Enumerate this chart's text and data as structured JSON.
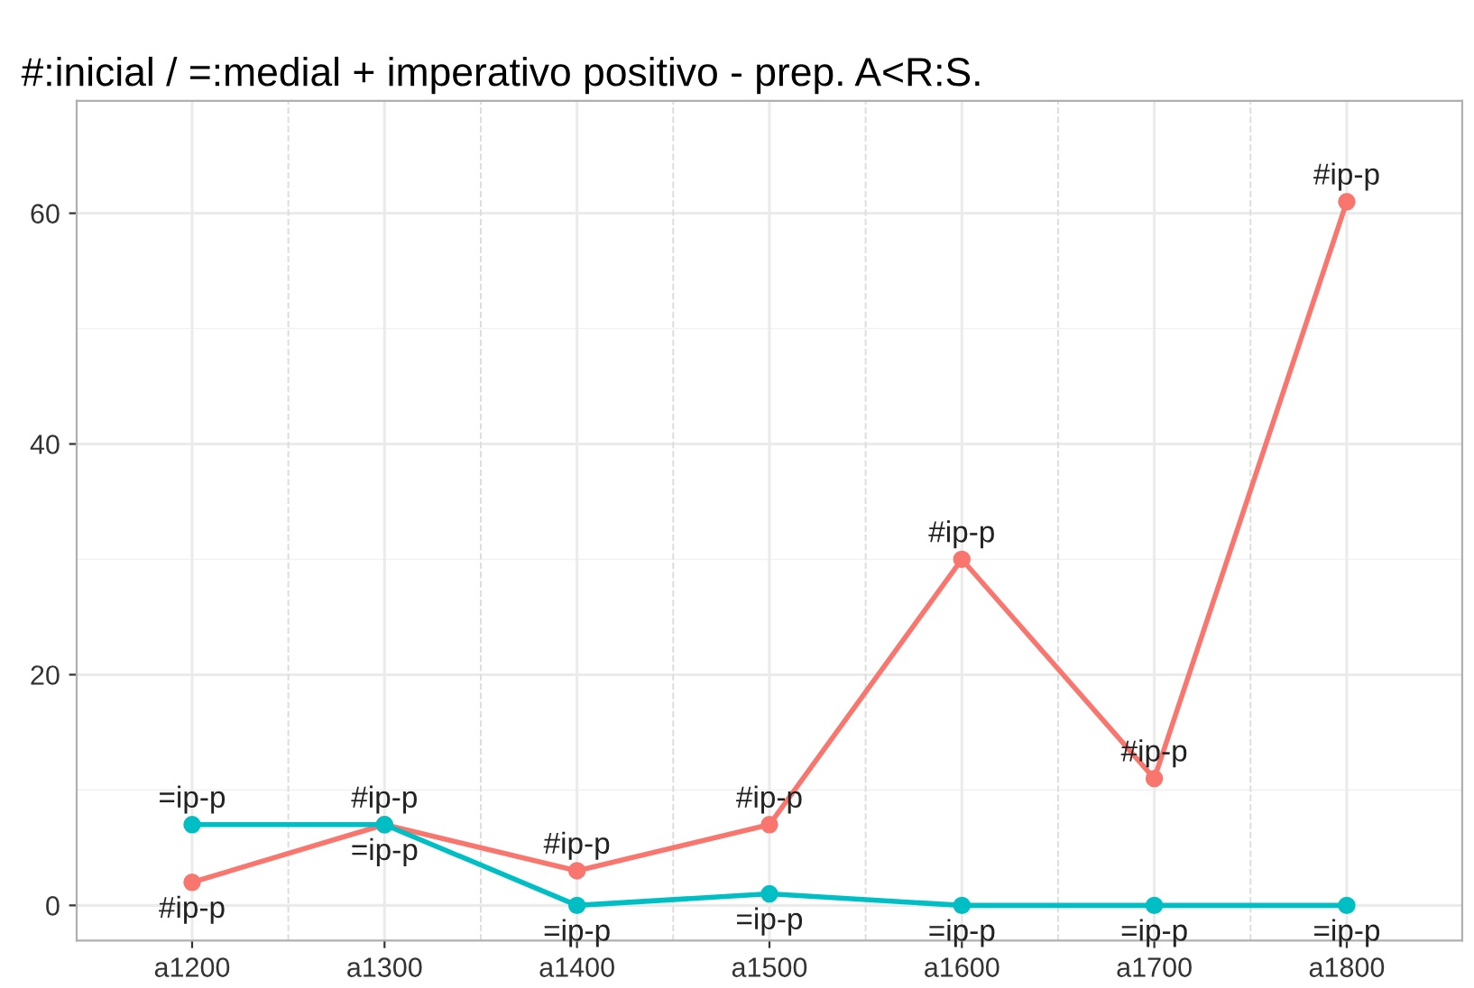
{
  "chart_data": {
    "type": "line",
    "title": "#:inicial / =:medial + imperativo positivo - prep. A<R:S.",
    "categories": [
      "a1200",
      "a1300",
      "a1400",
      "a1500",
      "a1600",
      "a1700",
      "a1800"
    ],
    "series": [
      {
        "name": "#ip-p",
        "color": "#f8766d",
        "values": [
          2,
          7,
          3,
          7,
          30,
          11,
          61
        ]
      },
      {
        "name": "=ip-p",
        "color": "#00bfc4",
        "values": [
          7,
          7,
          0,
          1,
          0,
          0,
          0
        ]
      }
    ],
    "ylim": [
      -3.05,
      69.75
    ],
    "yticks": [
      0,
      20,
      40,
      60
    ],
    "grid": true,
    "marker": "circle",
    "line_style": "solid"
  }
}
